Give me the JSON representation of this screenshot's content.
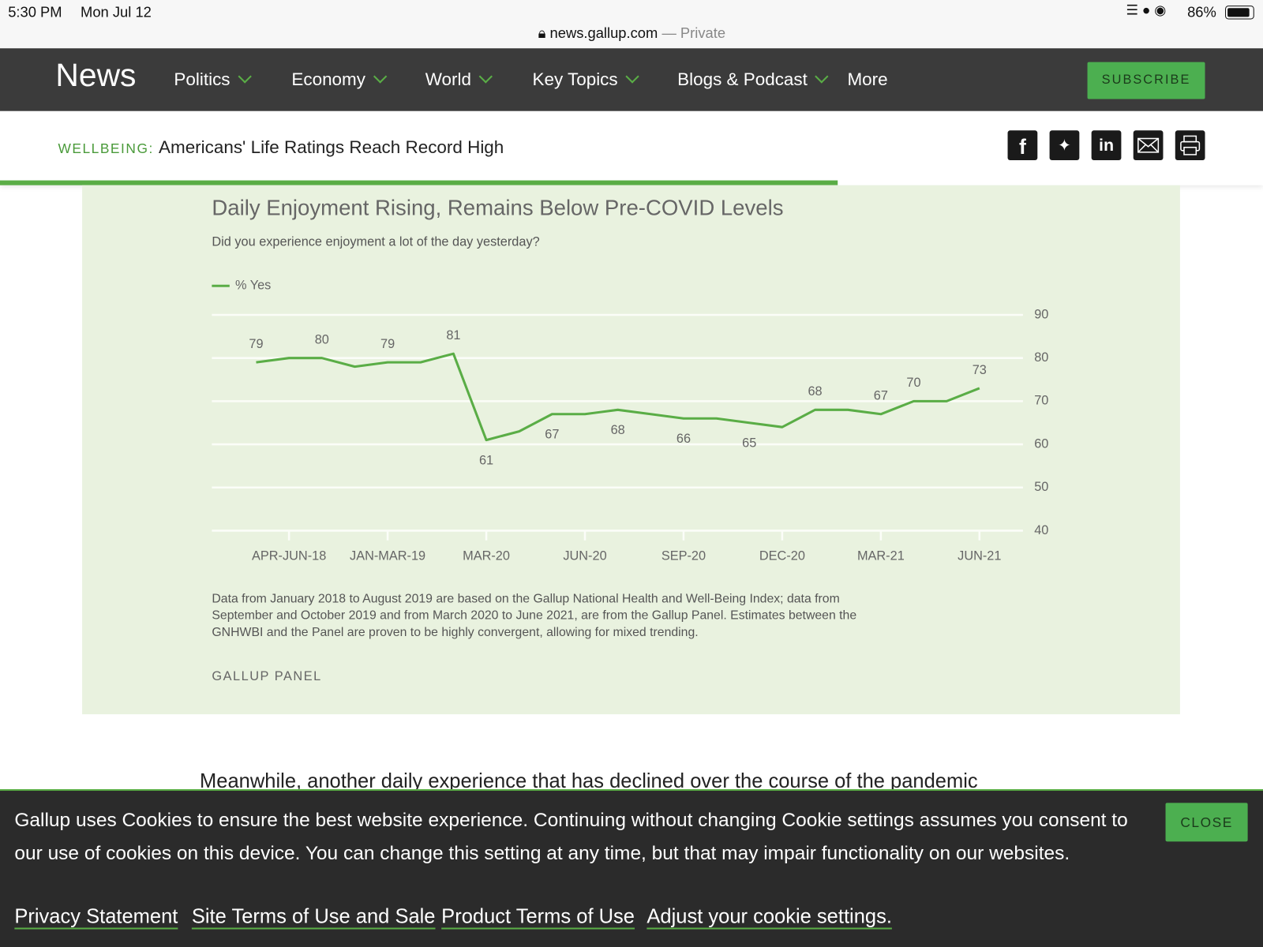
{
  "status_bar": {
    "time": "5:30 PM",
    "date": "Mon Jul 12",
    "battery": "86%"
  },
  "address_bar": {
    "url": "news.gallup.com",
    "mode": "— Private"
  },
  "nav": {
    "logo": "News",
    "items": [
      "Politics",
      "Economy",
      "World",
      "Key Topics",
      "Blogs & Podcast"
    ],
    "more": "More",
    "subscribe": "SUBSCRIBE"
  },
  "article_bar": {
    "section": "WELLBEING:",
    "headline": "Americans' Life Ratings Reach Record High"
  },
  "chart_data": {
    "type": "line",
    "title": "Daily Enjoyment Rising, Remains Below Pre-COVID Levels",
    "subtitle": "Did you experience enjoyment a lot of the day yesterday?",
    "categories": [
      null,
      "APR-JUN-18",
      null,
      null,
      "JAN-MAR-19",
      null,
      null,
      "MAR-20",
      null,
      null,
      "JUN-20",
      null,
      null,
      "SEP-20",
      null,
      null,
      "DEC-20",
      null,
      null,
      "MAR-21",
      null,
      null,
      "JUN-21"
    ],
    "series": [
      {
        "name": "% Yes",
        "color": "#5aad46",
        "values": [
          79,
          80,
          80,
          78,
          79,
          79,
          81,
          61,
          63,
          67,
          67,
          68,
          67,
          66,
          66,
          65,
          64,
          68,
          68,
          67,
          70,
          70,
          73
        ],
        "value_labels": [
          "79",
          null,
          "80",
          null,
          "79",
          null,
          "81",
          "61",
          null,
          "67",
          null,
          "68",
          null,
          "66",
          null,
          "65",
          null,
          "68",
          null,
          "67",
          "70",
          null,
          "73"
        ]
      }
    ],
    "ylim": [
      40,
      90
    ],
    "yticks": [
      40,
      50,
      60,
      70,
      80,
      90
    ],
    "grid": true,
    "legend": "top-left",
    "y_axis_side": "right",
    "note": "Data from January 2018 to August 2019 are based on the Gallup National Health and Well-Being Index; data from September and October 2019 and from March 2020 to June 2021, are from the Gallup Panel. Estimates between the GNHWBI and the Panel are proven to be highly convergent, allowing for mixed trending.",
    "source": "GALLUP PANEL"
  },
  "body_text": "Meanwhile, another daily experience that has declined over the course of the pandemic",
  "cookie_banner": {
    "message": "Gallup uses Cookies to ensure the best website experience. Continuing without changing Cookie settings assumes you consent to our use of cookies on this device. You can change this setting at any time, but that may impair functionality on our websites.",
    "close": "CLOSE",
    "links": [
      "Privacy Statement",
      "Site Terms of Use and Sale",
      "Product Terms of Use",
      "Adjust your cookie settings."
    ]
  }
}
